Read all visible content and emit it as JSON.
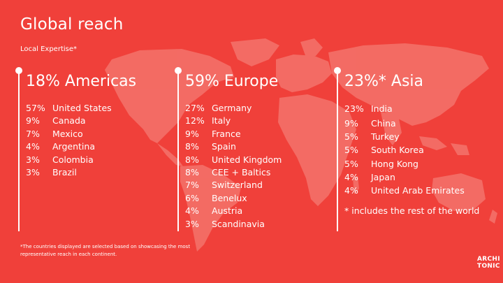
{
  "title": "Global reach",
  "subtitle": "Local Expertise*",
  "regions": [
    {
      "heading": "18% Americas",
      "rows": [
        {
          "pct": "57%",
          "country": "United States"
        },
        {
          "pct": "9%",
          "country": "Canada"
        },
        {
          "pct": "7%",
          "country": "Mexico"
        },
        {
          "pct": "4%",
          "country": "Argentina"
        },
        {
          "pct": "3%",
          "country": "Colombia"
        },
        {
          "pct": "3%",
          "country": "Brazil"
        }
      ]
    },
    {
      "heading": "59% Europe",
      "rows": [
        {
          "pct": "27%",
          "country": "Germany"
        },
        {
          "pct": "12%",
          "country": "Italy"
        },
        {
          "pct": "9%",
          "country": "France"
        },
        {
          "pct": "8%",
          "country": "Spain"
        },
        {
          "pct": "8%",
          "country": "United Kingdom"
        },
        {
          "pct": "8%",
          "country": "CEE + Baltics"
        },
        {
          "pct": "7%",
          "country": "Switzerland"
        },
        {
          "pct": "6%",
          "country": "Benelux"
        },
        {
          "pct": "4%",
          "country": "Austria"
        },
        {
          "pct": "3%",
          "country": "Scandinavia"
        }
      ]
    },
    {
      "heading": "23%* Asia",
      "rows": [
        {
          "pct": "23%",
          "country": "India"
        },
        {
          "pct": "9%",
          "country": "China"
        },
        {
          "pct": "5%",
          "country": "Turkey"
        },
        {
          "pct": "5%",
          "country": "South Korea"
        },
        {
          "pct": "5%",
          "country": "Hong Kong"
        },
        {
          "pct": "4%",
          "country": "Japan"
        },
        {
          "pct": "4%",
          "country": "United Arab Emirates"
        }
      ],
      "note": "* includes the rest of the world"
    }
  ],
  "footnote": "*The countries displayed are selected based on showcasing the most representative reach in each continent.",
  "logo": {
    "line1": "ARCHI",
    "line2": "TONIC"
  },
  "colors": {
    "background": "#f0403a",
    "map": "#f47a72",
    "text": "#ffffff"
  }
}
